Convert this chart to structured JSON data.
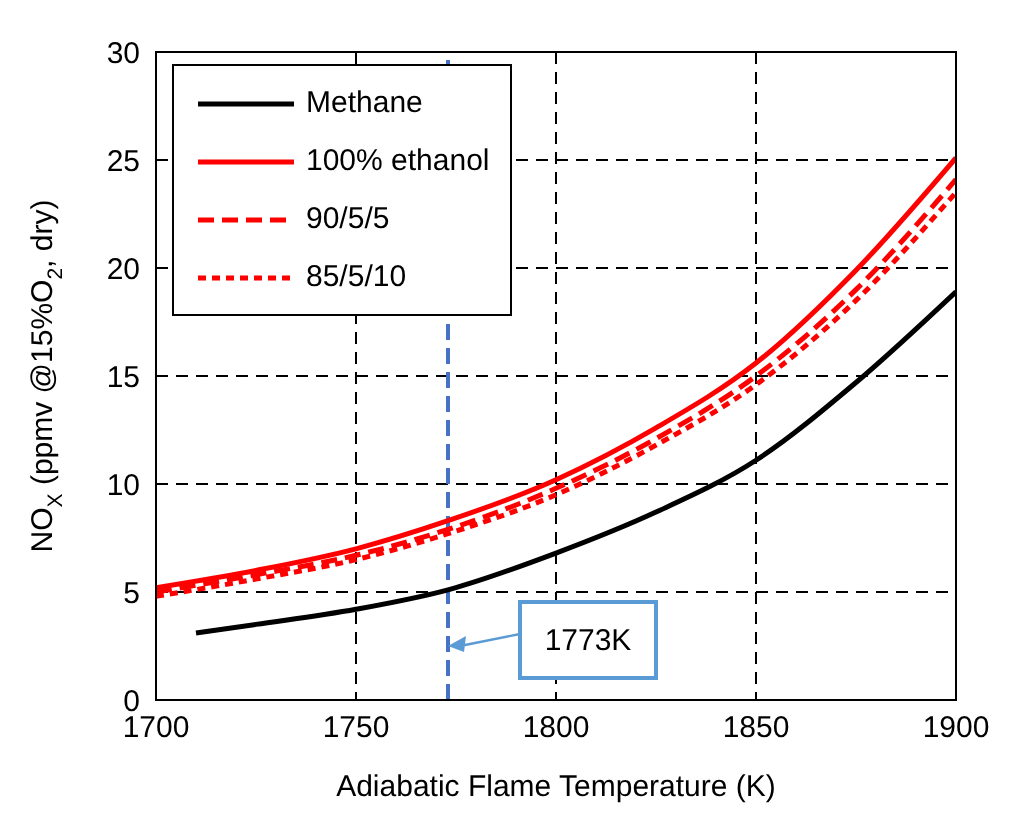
{
  "chart_data": {
    "type": "line",
    "xlabel": "Adiabatic Flame Temperature (K)",
    "ylabel": "NO$_{X}$ (ppmv @15%O$_{2}$, dry)",
    "xlim": [
      1700,
      1900
    ],
    "xticks": [
      1700,
      1750,
      1800,
      1850,
      1900
    ],
    "ylim": [
      0,
      30
    ],
    "yticks": [
      0,
      5,
      10,
      15,
      20,
      25,
      30
    ],
    "grid": true,
    "legend": "top left",
    "marker": "none",
    "series": [
      {
        "name": "Methane",
        "color": "#000000",
        "line_style": "solid",
        "x": [
          1710,
          1725,
          1750,
          1773,
          1800,
          1825,
          1850,
          1875,
          1900
        ],
        "values": [
          3.1,
          3.5,
          4.2,
          5.1,
          6.8,
          8.7,
          11.1,
          14.7,
          18.9
        ]
      },
      {
        "name": "100% ethanol",
        "color": "#ff0000",
        "line_style": "solid",
        "x": [
          1700,
          1725,
          1750,
          1773,
          1800,
          1825,
          1850,
          1875,
          1900
        ],
        "values": [
          5.2,
          6.0,
          7.0,
          8.3,
          10.2,
          12.6,
          15.6,
          19.9,
          25.1
        ]
      },
      {
        "name": "90/5/5",
        "color": "#ff0000",
        "line_style": "dashed",
        "x": [
          1700,
          1725,
          1750,
          1773,
          1800,
          1825,
          1850,
          1875,
          1900
        ],
        "values": [
          5.0,
          5.8,
          6.7,
          7.9,
          9.8,
          12.1,
          15.0,
          19.0,
          24.1
        ]
      },
      {
        "name": "85/5/10",
        "color": "#ff0000",
        "line_style": "dotted",
        "x": [
          1700,
          1725,
          1750,
          1773,
          1800,
          1825,
          1850,
          1875,
          1900
        ],
        "values": [
          4.8,
          5.6,
          6.5,
          7.7,
          9.5,
          11.8,
          14.6,
          18.5,
          23.5
        ]
      }
    ],
    "ref_lines": [
      {
        "axis": "x",
        "value": 1773,
        "color": "#4472c4",
        "line_style": "dashed"
      }
    ],
    "annotations": [
      {
        "text": "1773K",
        "x": 1773,
        "y": 2.5
      }
    ]
  }
}
